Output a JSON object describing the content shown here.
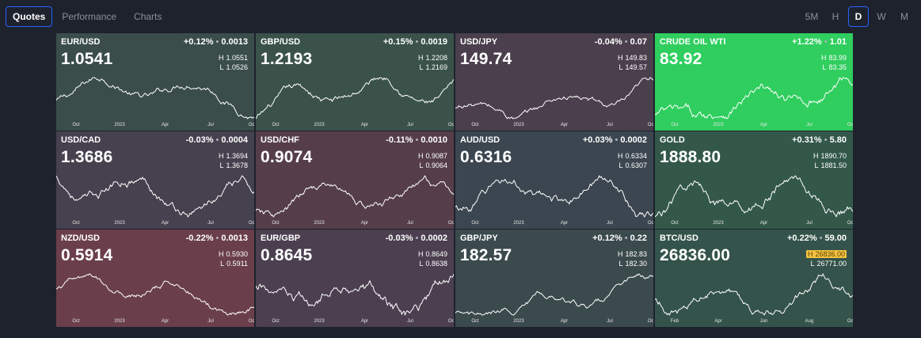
{
  "tabs": [
    {
      "label": "Quotes",
      "active": true
    },
    {
      "label": "Performance",
      "active": false
    },
    {
      "label": "Charts",
      "active": false
    }
  ],
  "periods": [
    {
      "label": "5M",
      "active": false
    },
    {
      "label": "H",
      "active": false
    },
    {
      "label": "D",
      "active": true
    },
    {
      "label": "W",
      "active": false
    },
    {
      "label": "M",
      "active": false
    }
  ],
  "cards": [
    {
      "symbol": "EUR/USD",
      "change_pct": "+0.12%",
      "change_abs": "0.0013",
      "price": "1.0541",
      "high": "1.0551",
      "low": "1.0526",
      "bg": "#3a4d4b",
      "axis": [
        "Oct",
        "2023",
        "Apr",
        "Jul",
        "Oct"
      ]
    },
    {
      "symbol": "GBP/USD",
      "change_pct": "+0.15%",
      "change_abs": "0.0019",
      "price": "1.2193",
      "high": "1.2208",
      "low": "1.2169",
      "bg": "#3a524a",
      "axis": [
        "Oct",
        "2023",
        "Apr",
        "Jul",
        "Oct"
      ]
    },
    {
      "symbol": "USD/JPY",
      "change_pct": "-0.04%",
      "change_abs": "0.07",
      "price": "149.74",
      "high": "149.83",
      "low": "149.57",
      "bg": "#4b3f4d",
      "axis": [
        "Oct",
        "2023",
        "Apr",
        "Jul",
        "Oct"
      ]
    },
    {
      "symbol": "CRUDE OIL WTI",
      "change_pct": "+1.22%",
      "change_abs": "1.01",
      "price": "83.92",
      "high": "83.99",
      "low": "83.35",
      "bg": "#2fce5e",
      "axis": [
        "Oct",
        "2023",
        "Apr",
        "Jul",
        "Oct"
      ]
    },
    {
      "symbol": "USD/CAD",
      "change_pct": "-0.03%",
      "change_abs": "0.0004",
      "price": "1.3686",
      "high": "1.3694",
      "low": "1.3678",
      "bg": "#46414f",
      "axis": [
        "Oct",
        "2023",
        "Apr",
        "Jul",
        "Oct"
      ]
    },
    {
      "symbol": "USD/CHF",
      "change_pct": "-0.11%",
      "change_abs": "0.0010",
      "price": "0.9074",
      "high": "0.9087",
      "low": "0.9064",
      "bg": "#553e4a",
      "axis": [
        "Oct",
        "2023",
        "Apr",
        "Jul",
        "Oct"
      ]
    },
    {
      "symbol": "AUD/USD",
      "change_pct": "+0.03%",
      "change_abs": "0.0002",
      "price": "0.6316",
      "high": "0.6334",
      "low": "0.6307",
      "bg": "#3b4650",
      "axis": [
        "Oct",
        "2023",
        "Apr",
        "Jul",
        "Oct"
      ]
    },
    {
      "symbol": "GOLD",
      "change_pct": "+0.31%",
      "change_abs": "5.80",
      "price": "1888.80",
      "high": "1890.70",
      "low": "1881.50",
      "bg": "#33584a",
      "axis": [
        "Oct",
        "2023",
        "Apr",
        "Jul",
        "Oct"
      ]
    },
    {
      "symbol": "NZD/USD",
      "change_pct": "-0.22%",
      "change_abs": "0.0013",
      "price": "0.5914",
      "high": "0.5930",
      "low": "0.5911",
      "bg": "#6a3f4b",
      "axis": [
        "Oct",
        "2023",
        "Apr",
        "Jul",
        "Oct"
      ]
    },
    {
      "symbol": "EUR/GBP",
      "change_pct": "-0.03%",
      "change_abs": "0.0002",
      "price": "0.8645",
      "high": "0.8649",
      "low": "0.8638",
      "bg": "#4b3f50",
      "axis": [
        "Oct",
        "2023",
        "Apr",
        "Jul",
        "Oct"
      ]
    },
    {
      "symbol": "GBP/JPY",
      "change_pct": "+0.12%",
      "change_abs": "0.22",
      "price": "182.57",
      "high": "182.83",
      "low": "182.30",
      "bg": "#3b4a4d",
      "axis": [
        "Oct",
        "2023",
        "Apr",
        "Jul",
        "Oct"
      ]
    },
    {
      "symbol": "BTC/USD",
      "change_pct": "+0.22%",
      "change_abs": "59.00",
      "price": "26836.00",
      "high": "26836.00",
      "low": "26771.00",
      "bg": "#34534a",
      "high_highlight": true,
      "axis": [
        "Feb",
        "Apr",
        "Jun",
        "Aug",
        "Oct"
      ]
    }
  ],
  "labels": {
    "high_prefix": "H",
    "low_prefix": "L",
    "separator": "•"
  }
}
